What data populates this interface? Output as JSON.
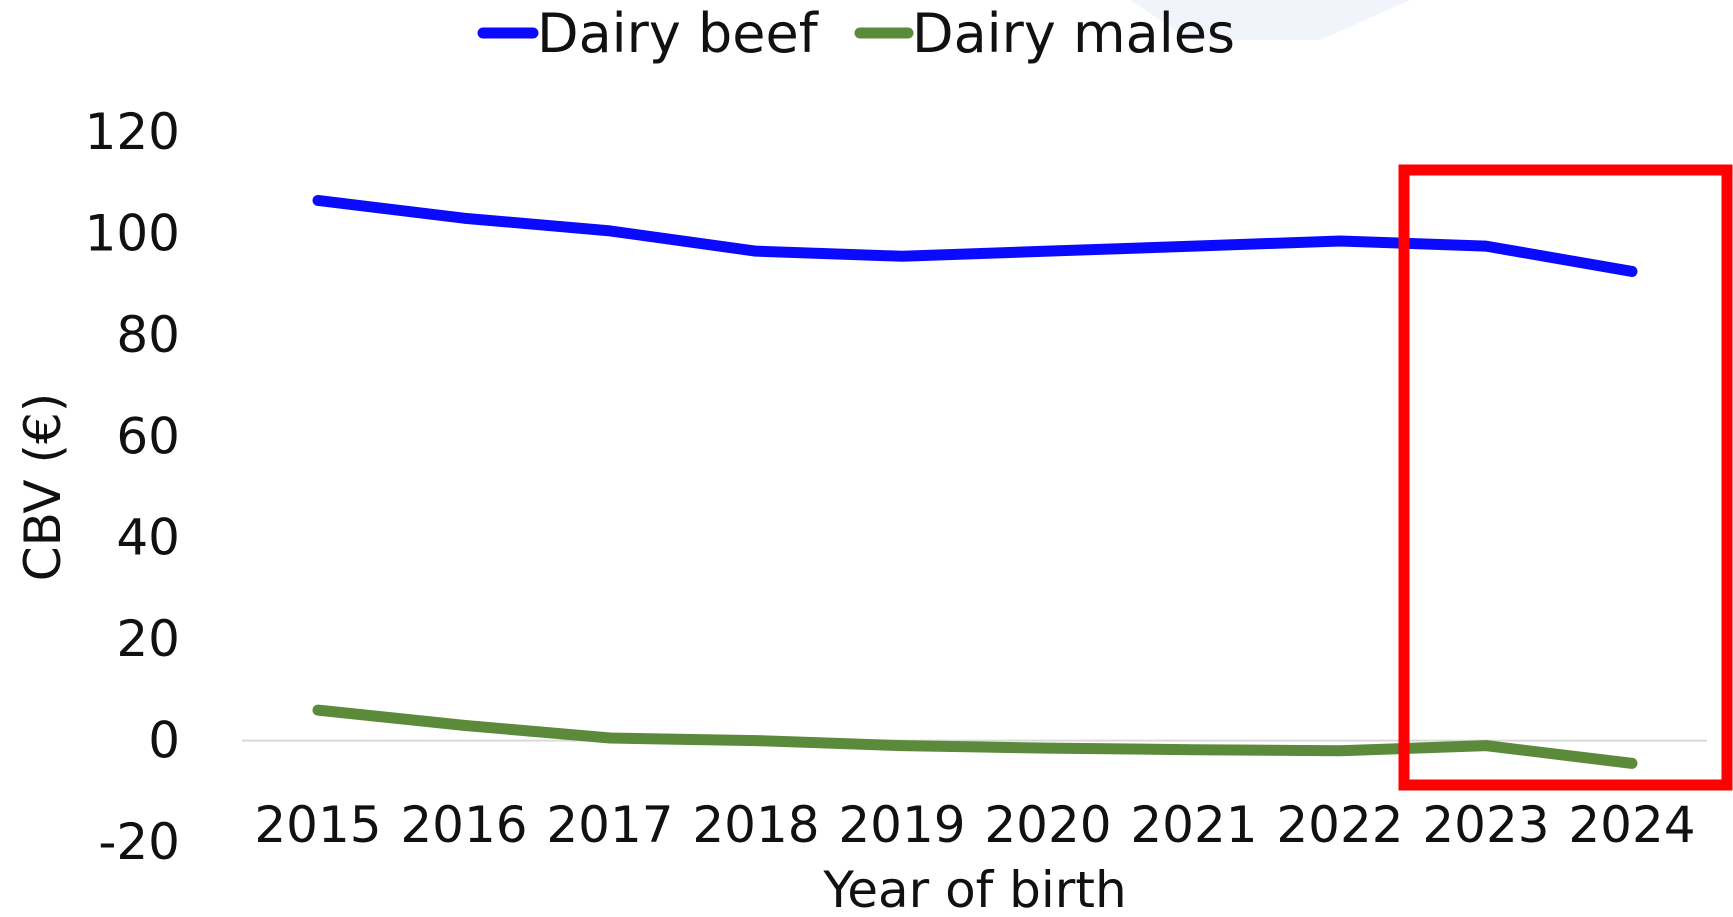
{
  "chart_data": {
    "type": "line",
    "title": "",
    "xlabel": "Year of birth",
    "ylabel": "CBV (€)",
    "x": [
      "2015",
      "2016",
      "2017",
      "2018",
      "2019",
      "2020",
      "2021",
      "2022",
      "2023",
      "2024"
    ],
    "ylim": [
      -20,
      120
    ],
    "yticks": [
      "120",
      "100",
      "80",
      "60",
      "40",
      "20",
      "0",
      "-20"
    ],
    "grid": false,
    "legend_position": "top",
    "series": [
      {
        "name": "Dairy beef",
        "color": "#0a0aff",
        "values": [
          106.5,
          103,
          100.5,
          96.5,
          95.5,
          96.5,
          97.5,
          98.5,
          97.5,
          92.5
        ]
      },
      {
        "name": "Dairy males",
        "color": "#5a8a3a",
        "values": [
          6.0,
          3.0,
          0.5,
          0.0,
          -1.0,
          -1.5,
          -1.8,
          -2.0,
          -1.0,
          -4.5
        ]
      }
    ],
    "highlight": {
      "color": "#ff0000",
      "x_start": "2023",
      "x_end": "2024"
    }
  }
}
